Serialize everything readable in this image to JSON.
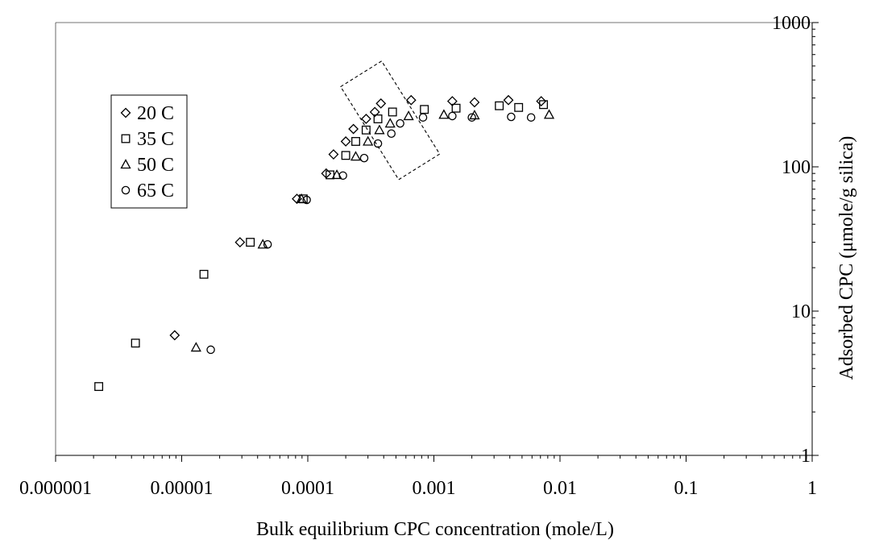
{
  "chart_data": {
    "type": "scatter",
    "title": "",
    "xlabel": "Bulk equilibrium CPC concentration (mole/L)",
    "ylabel": "Adsorbed CPC (μmole/g silica)",
    "xscale": "log",
    "yscale": "log",
    "xlim": [
      1e-06,
      1
    ],
    "ylim": [
      1,
      1000
    ],
    "x_tick_labels": [
      "0.000001",
      "0.00001",
      "0.0001",
      "0.001",
      "0.01",
      "0.1",
      "1"
    ],
    "y_tick_labels": [
      "1",
      "10",
      "100",
      "1000"
    ],
    "legend_position": "top-left",
    "series": [
      {
        "name": "20 C",
        "marker": "diamond",
        "points": [
          [
            8.8e-06,
            6.8
          ],
          [
            2.9e-05,
            30
          ],
          [
            8.2e-05,
            60
          ],
          [
            0.00014,
            90
          ],
          [
            0.00016,
            122
          ],
          [
            0.0002,
            150
          ],
          [
            0.00023,
            183
          ],
          [
            0.00029,
            215
          ],
          [
            0.00034,
            240
          ],
          [
            0.00038,
            275
          ],
          [
            0.00066,
            290
          ],
          [
            0.0014,
            285
          ],
          [
            0.0021,
            280
          ],
          [
            0.0039,
            290
          ],
          [
            0.0071,
            285
          ]
        ]
      },
      {
        "name": "35 C",
        "marker": "square",
        "points": [
          [
            2.2e-06,
            3
          ],
          [
            4.3e-06,
            6
          ],
          [
            1.5e-05,
            18
          ],
          [
            3.5e-05,
            30
          ],
          [
            9.2e-05,
            60
          ],
          [
            0.00015,
            88
          ],
          [
            0.0002,
            120
          ],
          [
            0.00024,
            150
          ],
          [
            0.00029,
            180
          ],
          [
            0.00036,
            215
          ],
          [
            0.00047,
            240
          ],
          [
            0.00084,
            250
          ],
          [
            0.0015,
            255
          ],
          [
            0.0033,
            265
          ],
          [
            0.0047,
            258
          ],
          [
            0.0074,
            270
          ]
        ]
      },
      {
        "name": "50 C",
        "marker": "triangle",
        "points": [
          [
            1.3e-05,
            5.6
          ],
          [
            4.4e-05,
            29
          ],
          [
            8.9e-05,
            60
          ],
          [
            0.00017,
            88
          ],
          [
            0.00024,
            118
          ],
          [
            0.0003,
            150
          ],
          [
            0.00037,
            180
          ],
          [
            0.00045,
            200
          ],
          [
            0.00063,
            225
          ],
          [
            0.0012,
            230
          ],
          [
            0.0021,
            228
          ],
          [
            0.0082,
            230
          ]
        ]
      },
      {
        "name": "65 C",
        "marker": "circle",
        "points": [
          [
            1.7e-05,
            5.4
          ],
          [
            4.8e-05,
            29
          ],
          [
            9.8e-05,
            59
          ],
          [
            0.00019,
            87
          ],
          [
            0.00028,
            115
          ],
          [
            0.00036,
            145
          ],
          [
            0.00046,
            170
          ],
          [
            0.00054,
            200
          ],
          [
            0.00082,
            220
          ],
          [
            0.0014,
            225
          ],
          [
            0.002,
            220
          ],
          [
            0.0041,
            222
          ],
          [
            0.0059,
            220
          ]
        ]
      }
    ]
  }
}
